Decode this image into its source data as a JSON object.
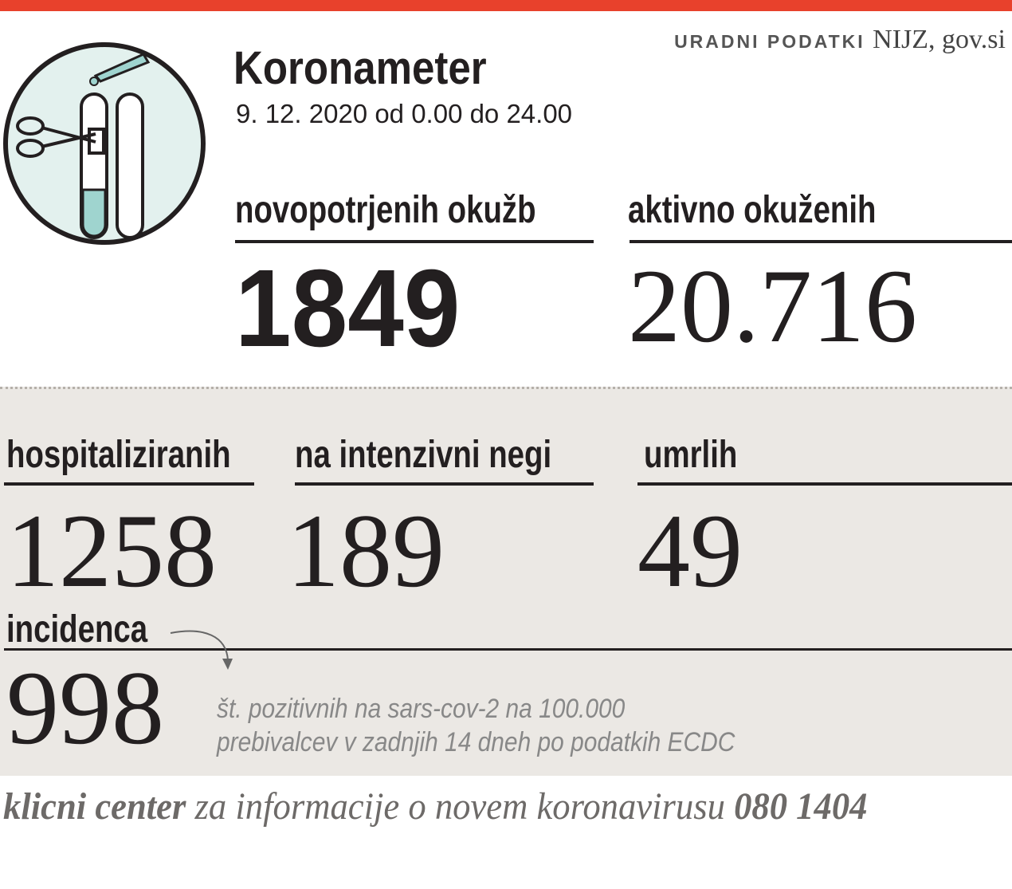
{
  "header": {
    "source_label": "URADNI PODATKI",
    "source": "NIJZ, gov.si",
    "title": "Koronameter",
    "date": "9. 12. 2020 od 0.00 do 24.00"
  },
  "stats": [
    {
      "label": "novopotrjenih okužb",
      "value": "1849"
    },
    {
      "label": "aktivno okuženih",
      "value": "20.716"
    },
    {
      "label": "hospitaliziranih",
      "value": "1258"
    },
    {
      "label": "na intenzivni negi",
      "value": "189"
    },
    {
      "label": "umrlih",
      "value": "49"
    }
  ],
  "incidence": {
    "label": "incidenca",
    "value": "998",
    "note": [
      "št. pozitivnih na sars-cov-2 na 100.000",
      "prebivalcev v zadnjih 14 dneh po podatkih ECDC"
    ]
  },
  "footer": {
    "lead": "klicni center",
    "text": "za informacije o novem koronavirusu",
    "phone": "080 1404"
  }
}
